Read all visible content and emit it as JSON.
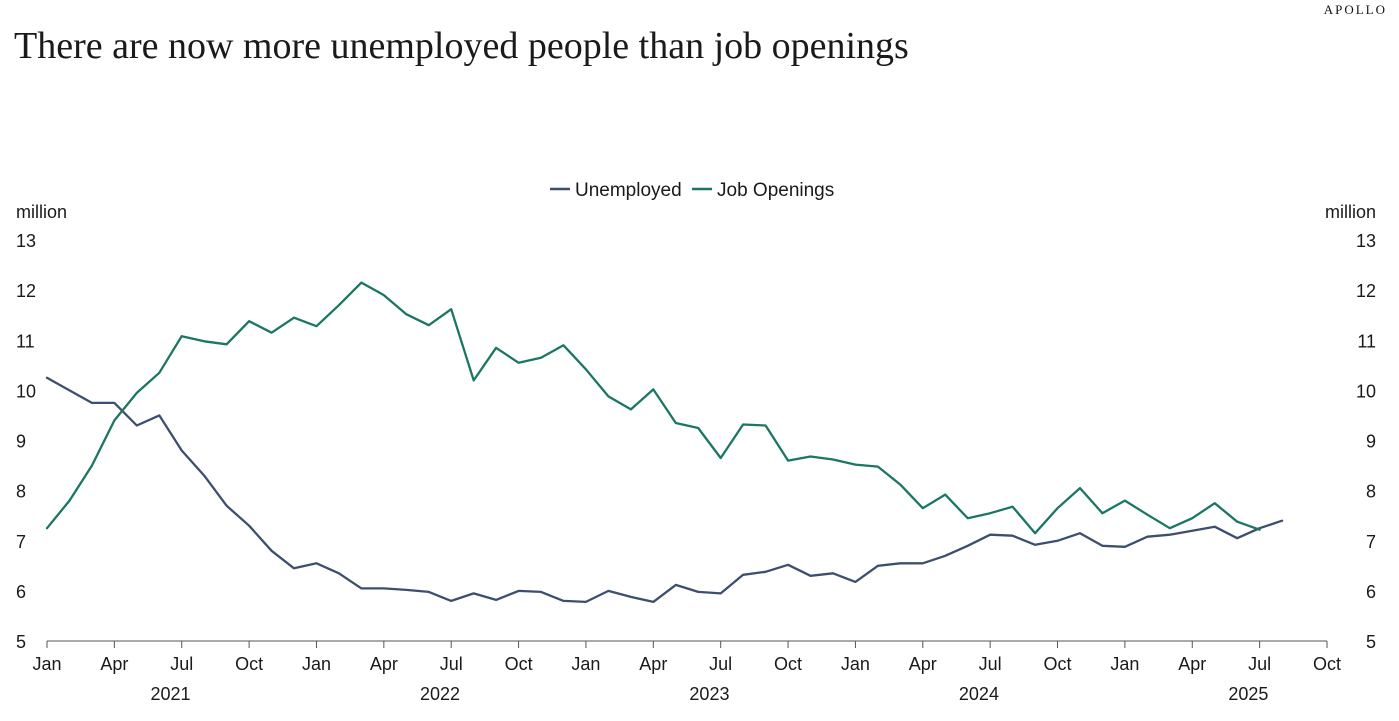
{
  "brand": "APOLLO",
  "chart_data": {
    "type": "line",
    "title": "There are now more unemployed people than job openings",
    "ylabel_left": "million",
    "ylabel_right": "million",
    "ylim": [
      5,
      13
    ],
    "yticks": [
      5,
      6,
      7,
      8,
      9,
      10,
      11,
      12,
      13
    ],
    "xlim": [
      "2021-01",
      "2025-10"
    ],
    "x_tick_labels": [
      "Jan",
      "Apr",
      "Jul",
      "Oct",
      "Jan",
      "Apr",
      "Jul",
      "Oct",
      "Jan",
      "Apr",
      "Jul",
      "Oct",
      "Jan",
      "Apr",
      "Jul",
      "Oct",
      "Jan",
      "Apr",
      "Jul",
      "Oct"
    ],
    "year_labels": [
      "2021",
      "2022",
      "2023",
      "2024",
      "2025"
    ],
    "legend_position": "top-center",
    "grid": false,
    "colors": {
      "Unemployed": "#3d4f6e",
      "Job Openings": "#1b7663"
    },
    "series": [
      {
        "name": "Unemployed",
        "start": "2021-01",
        "values": [
          10.25,
          10.0,
          9.75,
          9.75,
          9.3,
          9.5,
          8.8,
          8.3,
          7.7,
          7.3,
          6.8,
          6.45,
          6.55,
          6.35,
          6.05,
          6.05,
          6.02,
          5.98,
          5.8,
          5.95,
          5.82,
          6.0,
          5.98,
          5.8,
          5.78,
          6.0,
          5.88,
          5.78,
          6.12,
          5.98,
          5.95,
          6.32,
          6.38,
          6.52,
          6.3,
          6.35,
          6.18,
          6.5,
          6.55,
          6.55,
          6.7,
          6.9,
          7.12,
          7.1,
          6.92,
          7.0,
          7.15,
          6.9,
          6.88,
          7.08,
          7.12,
          7.2,
          7.28,
          7.05,
          7.25,
          7.4
        ]
      },
      {
        "name": "Job Openings",
        "start": "2021-01",
        "values": [
          7.25,
          7.8,
          8.5,
          9.4,
          9.95,
          10.35,
          11.08,
          10.98,
          10.92,
          11.38,
          11.15,
          11.45,
          11.28,
          11.7,
          12.15,
          11.9,
          11.52,
          11.3,
          11.62,
          10.2,
          10.85,
          10.55,
          10.65,
          10.9,
          10.42,
          9.88,
          9.62,
          10.02,
          9.35,
          9.25,
          8.65,
          9.32,
          9.3,
          8.6,
          8.68,
          8.62,
          8.52,
          8.48,
          8.12,
          7.65,
          7.92,
          7.45,
          7.55,
          7.68,
          7.15,
          7.65,
          8.05,
          7.55,
          7.8,
          7.52,
          7.25,
          7.45,
          7.75,
          7.38,
          7.22
        ]
      }
    ]
  }
}
